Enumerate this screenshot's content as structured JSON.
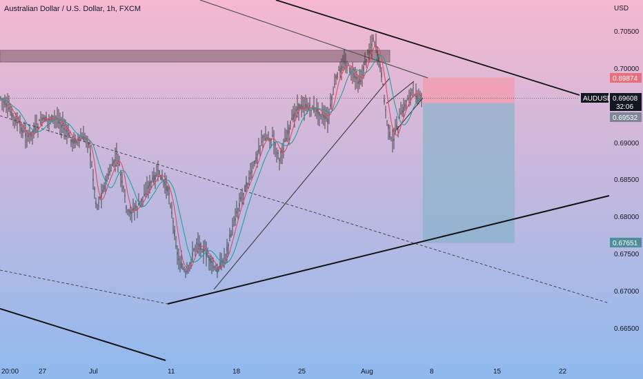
{
  "header": {
    "title": "Australian Dollar / U.S. Dollar, 1h, FXCM",
    "currency": "USD"
  },
  "colors": {
    "bg_top": "#f5b8cf",
    "bg_bottom": "#8fb9ee",
    "candle": "#3a3a3a",
    "ma_fast": "#e0495a",
    "ma_slow": "#1e9e9a",
    "resistance_zone": "#7a5a66",
    "stop_zone": "#f19db3",
    "target_zone": "#7fb0c7",
    "stop_label": "#e8707c",
    "target_label": "#4f8f9b",
    "symbol_label": "#131722"
  },
  "price_axis": {
    "ticks": [
      "0.70500",
      "0.70000",
      "0.69000",
      "0.68500",
      "0.68000",
      "0.67500",
      "0.67000",
      "0.66500"
    ],
    "tick_values": [
      0.705,
      0.7,
      0.69,
      0.685,
      0.68,
      0.675,
      0.67,
      0.665
    ]
  },
  "time_axis": {
    "ticks": [
      "20:00",
      "27",
      "Jul",
      "11",
      "18",
      "25",
      "Aug",
      "8",
      "15",
      "22"
    ]
  },
  "price_labels": {
    "stop": "0.69874",
    "symbol": "AUDUSD",
    "current": "0.69608",
    "countdown": "32:06",
    "entry": "0.69532",
    "target": "0.67651"
  },
  "chart_data": {
    "type": "line",
    "title": "Australian Dollar / U.S. Dollar, 1h, FXCM",
    "ylabel": "USD",
    "ylim": [
      0.6635,
      0.7075
    ],
    "series": [
      {
        "name": "AUDUSD",
        "x": [
          "Jun 23",
          "Jun 27",
          "Jul 1",
          "Jul 5",
          "Jul 8",
          "Jul 11",
          "Jul 14",
          "Jul 18",
          "Jul 21",
          "Jul 25",
          "Jul 28",
          "Aug 1",
          "Aug 3",
          "Aug 5"
        ],
        "values": [
          0.6965,
          0.6945,
          0.6885,
          0.6835,
          0.6855,
          0.6735,
          0.672,
          0.684,
          0.691,
          0.6945,
          0.7005,
          0.7035,
          0.691,
          0.6965
        ]
      }
    ],
    "levels": [
      {
        "label": "stop",
        "value": 0.69874
      },
      {
        "label": "current",
        "value": 0.69608
      },
      {
        "label": "entry",
        "value": 0.69532
      },
      {
        "label": "target",
        "value": 0.67651
      }
    ]
  }
}
